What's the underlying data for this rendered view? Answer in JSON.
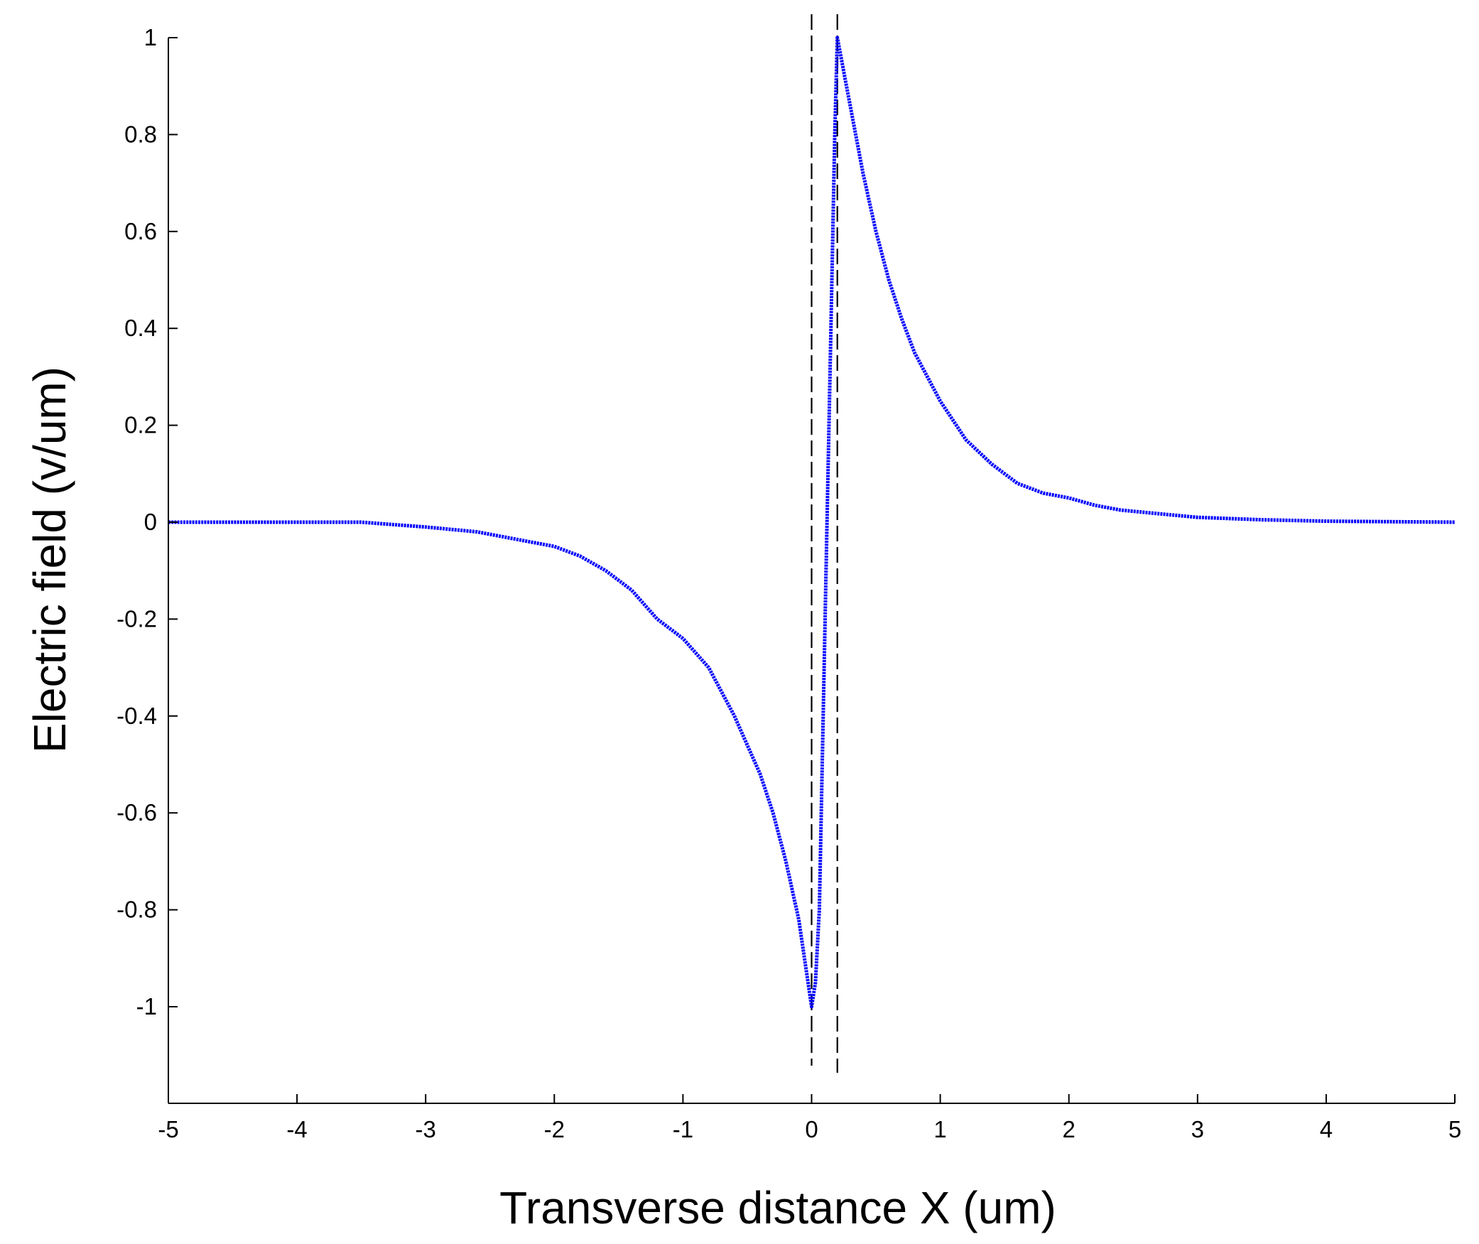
{
  "chart_data": {
    "type": "line",
    "title": "",
    "xlabel": "Transverse distance X (um)",
    "ylabel": "Electric field (v/um)",
    "xlim": [
      -5,
      5
    ],
    "ylim": [
      -1.2,
      1
    ],
    "xticks": [
      -5,
      -4,
      -3,
      -2,
      -1,
      0,
      1,
      2,
      3,
      4,
      5
    ],
    "yticks": [
      1,
      0.8,
      0.6,
      0.4,
      0.2,
      0,
      -0.2,
      -0.4,
      -0.6,
      -0.8,
      -1
    ],
    "xtick_labels": [
      "-5",
      "-4",
      "-3",
      "-2",
      "-1",
      "0",
      "1",
      "2",
      "3",
      "4",
      "5"
    ],
    "ytick_labels": [
      "1",
      "0.8",
      "0.6",
      "0.4",
      "0.2",
      "0",
      "-0.2",
      "-0.4",
      "-0.6",
      "-0.8",
      "-1"
    ],
    "grid": false,
    "series": [
      {
        "color": "#0000ff",
        "style": "dotted-dense",
        "x": [
          -5,
          -4.5,
          -4,
          -3.5,
          -3,
          -2.8,
          -2.6,
          -2.4,
          -2.2,
          -2,
          -1.8,
          -1.6,
          -1.4,
          -1.2,
          -1.0,
          -0.8,
          -0.6,
          -0.4,
          -0.3,
          -0.2,
          -0.1,
          0,
          0.03,
          0.06,
          0.09,
          0.12,
          0.15,
          0.18,
          0.2,
          0.3,
          0.4,
          0.5,
          0.6,
          0.7,
          0.8,
          1.0,
          1.2,
          1.4,
          1.6,
          1.8,
          2.0,
          2.2,
          2.4,
          2.6,
          2.8,
          3.0,
          3.5,
          4,
          4.5,
          5
        ],
        "y": [
          0,
          0,
          0,
          0,
          -0.01,
          -0.015,
          -0.02,
          -0.03,
          -0.04,
          -0.05,
          -0.07,
          -0.1,
          -0.14,
          -0.2,
          -0.24,
          -0.3,
          -0.4,
          -0.52,
          -0.6,
          -0.7,
          -0.82,
          -1.0,
          -0.95,
          -0.8,
          -0.4,
          0,
          0.4,
          0.8,
          1.0,
          0.86,
          0.72,
          0.6,
          0.5,
          0.42,
          0.35,
          0.25,
          0.17,
          0.12,
          0.08,
          0.06,
          0.05,
          0.035,
          0.025,
          0.02,
          0.015,
          0.01,
          0.005,
          0.002,
          0.001,
          0
        ]
      }
    ],
    "reference_lines": [
      {
        "orientation": "vertical",
        "x": 0,
        "style": "dashed",
        "color": "#000000"
      },
      {
        "orientation": "vertical",
        "x": 0.2,
        "style": "dashed",
        "color": "#000000"
      }
    ]
  }
}
